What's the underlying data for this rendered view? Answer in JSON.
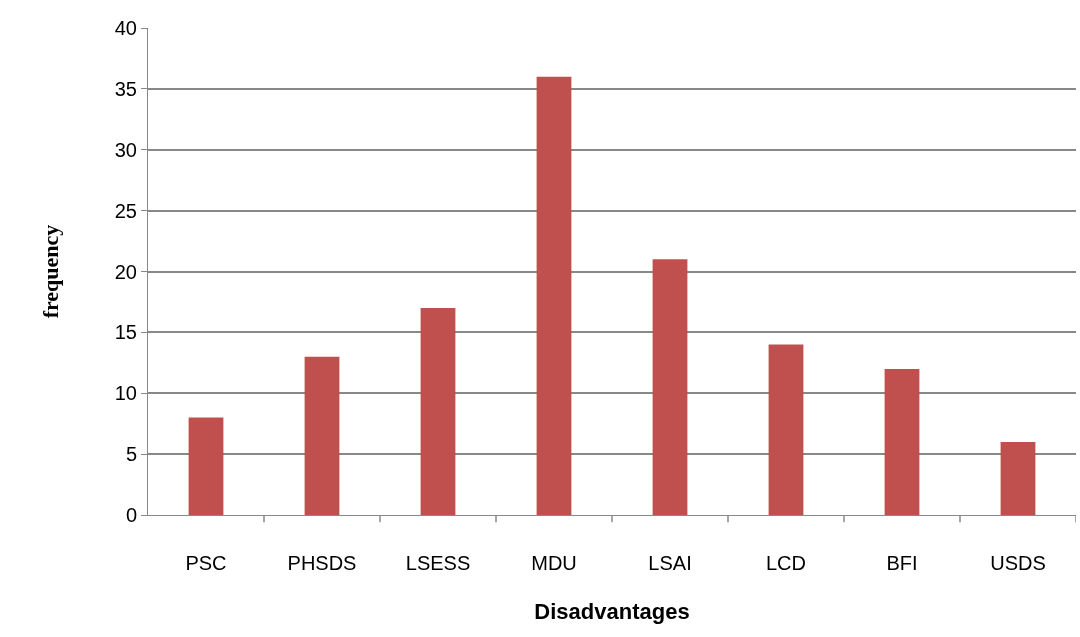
{
  "chart_data": {
    "type": "bar",
    "xlabel": "Disadvantages",
    "ylabel": "frequency",
    "categories": [
      "PSC",
      "PHSDS",
      "LSESS",
      "MDU",
      "LSAI",
      "LCD",
      "BFI",
      "USDS"
    ],
    "values": [
      8,
      13,
      17,
      36,
      21,
      14,
      12,
      6
    ],
    "color": "#c0504d",
    "ylim": [
      0,
      40
    ],
    "yticks": [
      0,
      5,
      10,
      15,
      20,
      25,
      30,
      35,
      40
    ],
    "grid": "y",
    "legend": false
  }
}
